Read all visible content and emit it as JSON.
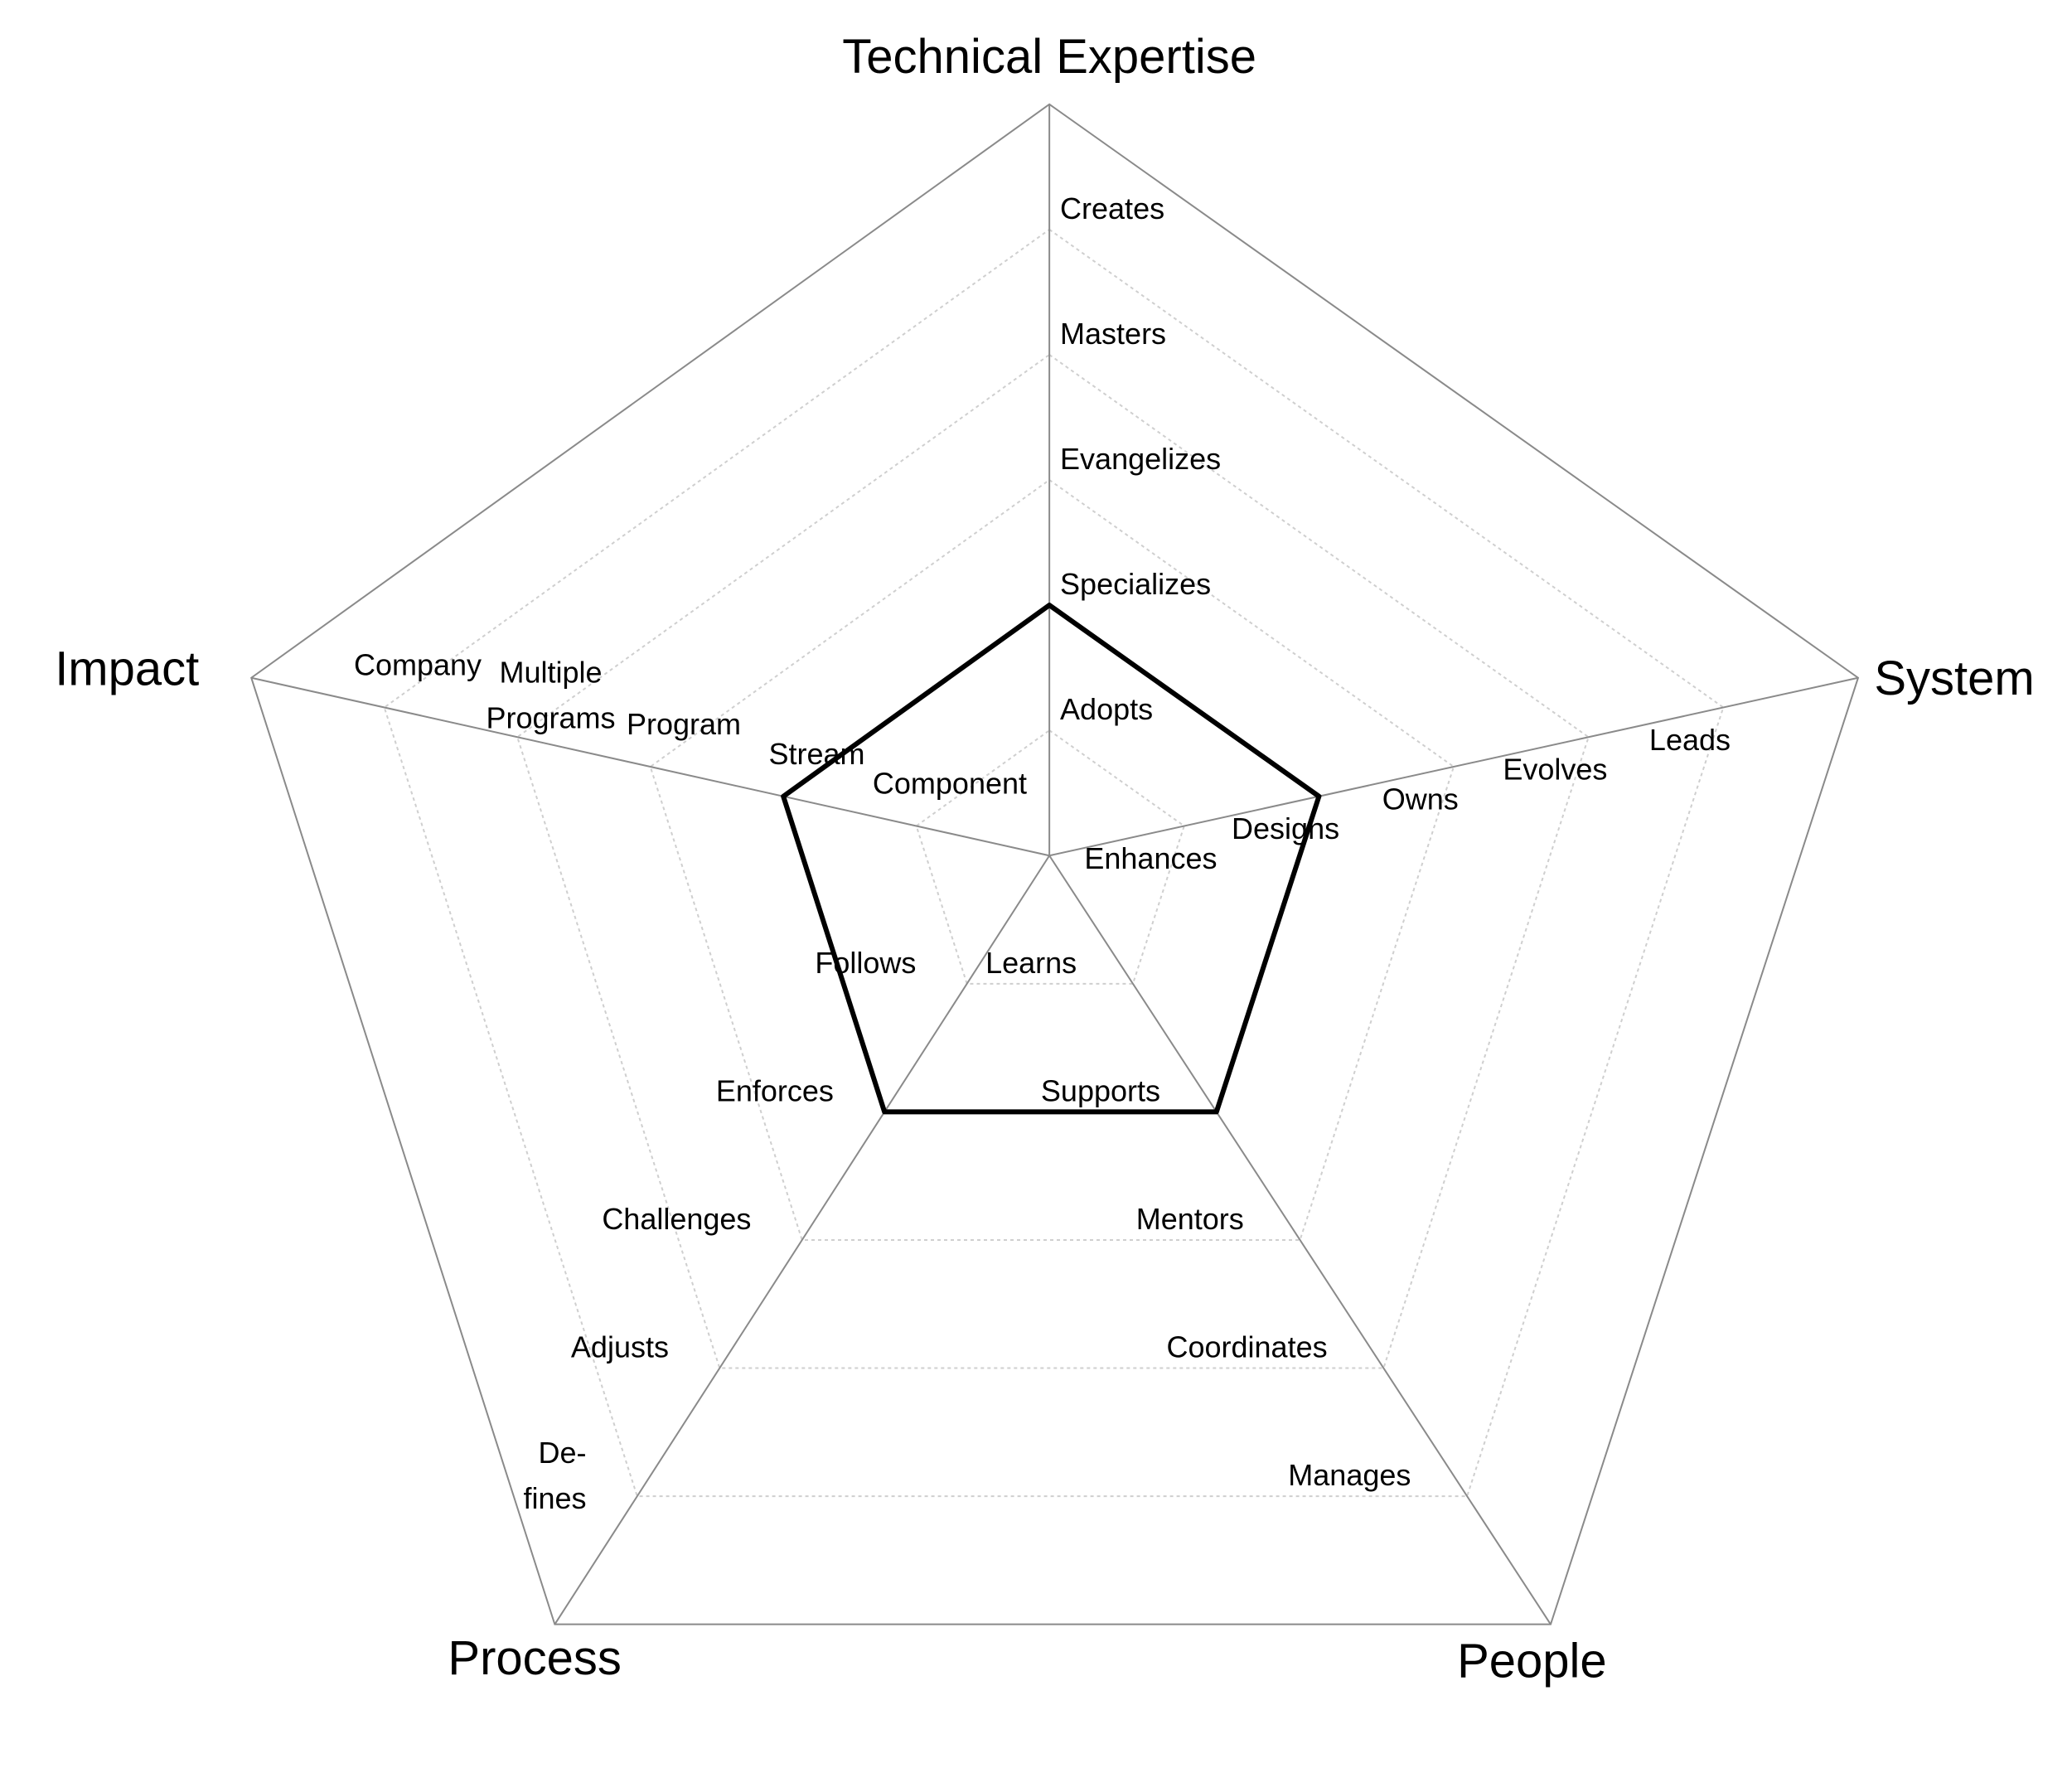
{
  "chart_data": {
    "type": "radar",
    "axes": [
      {
        "name": "Technical Expertise",
        "levels": [
          "Adopts",
          "Specializes",
          "Evangelizes",
          "Masters",
          "Creates"
        ]
      },
      {
        "name": "System",
        "levels": [
          "Enhances",
          "Designs",
          "Owns",
          "Evolves",
          "Leads"
        ]
      },
      {
        "name": "People",
        "levels": [
          "Learns",
          "Supports",
          "Mentors",
          "Coordinates",
          "Manages"
        ]
      },
      {
        "name": "Process",
        "levels": [
          "Follows",
          "Enforces",
          "Challenges",
          "Adjusts",
          [
            "De-",
            "fines"
          ]
        ]
      },
      {
        "name": "Impact",
        "levels": [
          "Component",
          "Stream",
          "Program",
          [
            "Multiple",
            "Programs"
          ],
          "Company"
        ]
      }
    ],
    "rlim": [
      0,
      6
    ],
    "series": [
      {
        "values": [
          2,
          2,
          2,
          2,
          2
        ],
        "color": "#000000"
      }
    ]
  }
}
